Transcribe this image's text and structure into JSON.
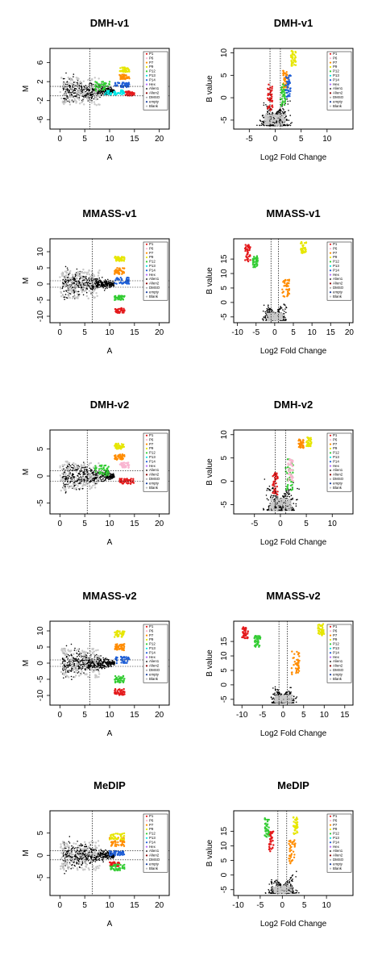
{
  "legend_entries": [
    {
      "label": "P1",
      "color": "#e41a1c"
    },
    {
      "label": "P6",
      "color": "#f9b4d0"
    },
    {
      "label": "P7",
      "color": "#ff8c00"
    },
    {
      "label": "P9",
      "color": "#e6e600"
    },
    {
      "label": "P12",
      "color": "#33cc33"
    },
    {
      "label": "P13",
      "color": "#00e5e5"
    },
    {
      "label": "P14",
      "color": "#1f5fd6"
    },
    {
      "label": "Hex",
      "color": "#b266ff"
    },
    {
      "label": "Alien1",
      "color": "#555555"
    },
    {
      "label": "Alien2",
      "color": "#8b0000"
    },
    {
      "label": "DMSO",
      "color": "#aaaaaa"
    },
    {
      "label": "empty",
      "color": "#1a3f9e"
    },
    {
      "label": "Blank",
      "color": "#bdbdbd"
    }
  ],
  "chart_data": [
    {
      "type": "scatter",
      "title": "DMH-v1",
      "xlabel": "A",
      "ylabel": "M",
      "xlim": [
        -2,
        22
      ],
      "ylim": [
        -8,
        9
      ],
      "xticks": [
        0,
        5,
        10,
        15,
        20
      ],
      "yticks": [
        -6,
        -2,
        2,
        6
      ],
      "vline": 6,
      "hlines": [
        -1,
        1
      ],
      "clusters": [
        {
          "label": "P1",
          "x": [
            13,
            15
          ],
          "y": [
            -1,
            0
          ]
        },
        {
          "label": "P7",
          "x": [
            12,
            14
          ],
          "y": [
            2.5,
            3.5
          ]
        },
        {
          "label": "P9",
          "x": [
            12,
            14
          ],
          "y": [
            4,
            5
          ]
        },
        {
          "label": "P12",
          "x": [
            7,
            10
          ],
          "y": [
            0,
            2
          ]
        },
        {
          "label": "P13",
          "x": [
            9,
            13
          ],
          "y": [
            -0.8,
            0.2
          ]
        },
        {
          "label": "P14",
          "x": [
            11,
            14
          ],
          "y": [
            0.8,
            1.8
          ]
        }
      ]
    },
    {
      "type": "scatter",
      "title": "DMH-v1",
      "xlabel": "Log2 Fold Change",
      "ylabel": "B value",
      "xlim": [
        -8,
        15
      ],
      "ylim": [
        -7,
        11
      ],
      "xticks": [
        -5,
        0,
        5,
        10
      ],
      "yticks": [
        -5,
        0,
        5,
        10
      ],
      "vlines": [
        -1,
        1
      ],
      "clusters": [
        {
          "label": "P1",
          "x": [
            -1.5,
            -0.5
          ],
          "y": [
            -3,
            3
          ]
        },
        {
          "label": "P7",
          "x": [
            1.5,
            2.5
          ],
          "y": [
            2,
            6
          ]
        },
        {
          "label": "P9",
          "x": [
            3,
            4
          ],
          "y": [
            7,
            10.5
          ]
        },
        {
          "label": "P12",
          "x": [
            1,
            2
          ],
          "y": [
            -2,
            3
          ]
        },
        {
          "label": "P14",
          "x": [
            2,
            3
          ],
          "y": [
            0,
            5
          ]
        }
      ]
    },
    {
      "type": "scatter",
      "title": "MMASS-v1",
      "xlabel": "A",
      "ylabel": "M",
      "xlim": [
        -2,
        22
      ],
      "ylim": [
        -12,
        14
      ],
      "xticks": [
        0,
        5,
        10,
        15,
        20
      ],
      "yticks": [
        -10,
        -5,
        0,
        5,
        10
      ],
      "vline": 6.5,
      "hlines": [
        -1,
        1
      ],
      "clusters": [
        {
          "label": "P1",
          "x": [
            11,
            13
          ],
          "y": [
            -9,
            -7.5
          ]
        },
        {
          "label": "P7",
          "x": [
            11,
            13
          ],
          "y": [
            3,
            5
          ]
        },
        {
          "label": "P9",
          "x": [
            11,
            13
          ],
          "y": [
            7,
            8.5
          ]
        },
        {
          "label": "P12",
          "x": [
            11,
            13
          ],
          "y": [
            -5,
            -3.5
          ]
        },
        {
          "label": "P14",
          "x": [
            11,
            14
          ],
          "y": [
            0,
            2
          ]
        }
      ]
    },
    {
      "type": "scatter",
      "title": "MMASS-v1",
      "xlabel": "Log2 Fold Change",
      "ylabel": "B value",
      "xlim": [
        -11,
        21
      ],
      "ylim": [
        -7,
        22
      ],
      "xticks": [
        -10,
        -5,
        0,
        5,
        10,
        15,
        20
      ],
      "yticks": [
        -5,
        0,
        5,
        10,
        15
      ],
      "vlines": [
        -1,
        1
      ],
      "clusters": [
        {
          "label": "P1",
          "x": [
            -8,
            -6.5
          ],
          "y": [
            14,
            20
          ]
        },
        {
          "label": "P9",
          "x": [
            7,
            8.5
          ],
          "y": [
            17,
            21
          ]
        },
        {
          "label": "P12",
          "x": [
            -6,
            -4.5
          ],
          "y": [
            12,
            16
          ]
        },
        {
          "label": "P7",
          "x": [
            2,
            4
          ],
          "y": [
            2,
            8
          ]
        }
      ]
    },
    {
      "type": "scatter",
      "title": "DMH-v2",
      "xlabel": "A",
      "ylabel": "M",
      "xlim": [
        -2,
        22
      ],
      "ylim": [
        -7,
        8.5
      ],
      "xticks": [
        0,
        5,
        10,
        15,
        20
      ],
      "yticks": [
        -5,
        0,
        5
      ],
      "vline": 5.5,
      "hlines": [
        -1,
        1
      ],
      "clusters": [
        {
          "label": "P1",
          "x": [
            12,
            15
          ],
          "y": [
            -1.5,
            -0.5
          ]
        },
        {
          "label": "P7",
          "x": [
            11,
            13
          ],
          "y": [
            3,
            4
          ]
        },
        {
          "label": "P9",
          "x": [
            11,
            13
          ],
          "y": [
            5,
            6
          ]
        },
        {
          "label": "P12",
          "x": [
            7,
            10
          ],
          "y": [
            0,
            2
          ]
        },
        {
          "label": "P6",
          "x": [
            12,
            14
          ],
          "y": [
            1.5,
            2.5
          ]
        }
      ]
    },
    {
      "type": "scatter",
      "title": "DMH-v2",
      "xlabel": "Log2 Fold Change",
      "ylabel": "B value",
      "xlim": [
        -9,
        14
      ],
      "ylim": [
        -7,
        11
      ],
      "xticks": [
        -5,
        0,
        5,
        10
      ],
      "yticks": [
        -5,
        0,
        5,
        10
      ],
      "vlines": [
        -1,
        1
      ],
      "clusters": [
        {
          "label": "P1",
          "x": [
            -1.5,
            -0.5
          ],
          "y": [
            -3,
            2
          ]
        },
        {
          "label": "P7",
          "x": [
            3.5,
            4.5
          ],
          "y": [
            7,
            9
          ]
        },
        {
          "label": "P9",
          "x": [
            5,
            6
          ],
          "y": [
            7.5,
            9.5
          ]
        },
        {
          "label": "P12",
          "x": [
            1,
            2.5
          ],
          "y": [
            -2,
            5
          ]
        },
        {
          "label": "P6",
          "x": [
            1.5,
            2.5
          ],
          "y": [
            0,
            5
          ]
        }
      ]
    },
    {
      "type": "scatter",
      "title": "MMASS-v2",
      "xlabel": "A",
      "ylabel": "M",
      "xlim": [
        -2,
        22
      ],
      "ylim": [
        -13,
        13
      ],
      "xticks": [
        0,
        5,
        10,
        15,
        20
      ],
      "yticks": [
        -10,
        -5,
        0,
        5,
        10
      ],
      "vline": 6,
      "hlines": [
        -1,
        1
      ],
      "clusters": [
        {
          "label": "P1",
          "x": [
            11,
            13
          ],
          "y": [
            -10,
            -8
          ]
        },
        {
          "label": "P7",
          "x": [
            11,
            13
          ],
          "y": [
            4,
            6
          ]
        },
        {
          "label": "P9",
          "x": [
            11,
            13
          ],
          "y": [
            8,
            10
          ]
        },
        {
          "label": "P12",
          "x": [
            11,
            13
          ],
          "y": [
            -6,
            -4
          ]
        },
        {
          "label": "P14",
          "x": [
            11,
            14
          ],
          "y": [
            0,
            2
          ]
        }
      ]
    },
    {
      "type": "scatter",
      "title": "MMASS-v2",
      "xlabel": "Log2 Fold Change",
      "ylabel": "B value",
      "xlim": [
        -12,
        17
      ],
      "ylim": [
        -7,
        22
      ],
      "xticks": [
        -10,
        -5,
        0,
        5,
        10,
        15
      ],
      "yticks": [
        -5,
        0,
        5,
        10,
        15
      ],
      "vlines": [
        -1,
        1
      ],
      "clusters": [
        {
          "label": "P1",
          "x": [
            -10,
            -8.5
          ],
          "y": [
            16,
            20
          ]
        },
        {
          "label": "P12",
          "x": [
            -7,
            -5.5
          ],
          "y": [
            13,
            17
          ]
        },
        {
          "label": "P9",
          "x": [
            8.5,
            10
          ],
          "y": [
            17,
            21
          ]
        },
        {
          "label": "P7",
          "x": [
            2,
            4
          ],
          "y": [
            3,
            12
          ]
        }
      ]
    },
    {
      "type": "scatter",
      "title": "MeDIP",
      "xlabel": "A",
      "ylabel": "M",
      "xlim": [
        -2,
        22
      ],
      "ylim": [
        -9,
        10
      ],
      "xticks": [
        0,
        5,
        10,
        15,
        20
      ],
      "yticks": [
        -5,
        0,
        5
      ],
      "vline": 6.5,
      "hlines": [
        -1,
        1
      ],
      "clusters": [
        {
          "label": "P1",
          "x": [
            10,
            12
          ],
          "y": [
            -2.5,
            -1.5
          ]
        },
        {
          "label": "P7",
          "x": [
            10,
            13
          ],
          "y": [
            2,
            4
          ]
        },
        {
          "label": "P9",
          "x": [
            10,
            13
          ],
          "y": [
            3.5,
            5
          ]
        },
        {
          "label": "P12",
          "x": [
            10,
            13
          ],
          "y": [
            -3.5,
            -2
          ]
        },
        {
          "label": "P14",
          "x": [
            10,
            13
          ],
          "y": [
            0,
            1
          ]
        }
      ]
    },
    {
      "type": "scatter",
      "title": "MeDIP",
      "xlabel": "Log2 Fold Change",
      "ylabel": "B value",
      "xlim": [
        -11,
        16
      ],
      "ylim": [
        -7,
        22
      ],
      "xticks": [
        -10,
        -5,
        0,
        5,
        10
      ],
      "yticks": [
        -5,
        0,
        5,
        10,
        15
      ],
      "vlines": [
        -1,
        1
      ],
      "clusters": [
        {
          "label": "P1",
          "x": [
            -3,
            -2
          ],
          "y": [
            8,
            15
          ]
        },
        {
          "label": "P12",
          "x": [
            -4,
            -3
          ],
          "y": [
            13,
            20
          ]
        },
        {
          "label": "P9",
          "x": [
            2.5,
            3.5
          ],
          "y": [
            14,
            20
          ]
        },
        {
          "label": "P7",
          "x": [
            1.5,
            3
          ],
          "y": [
            4,
            12
          ]
        }
      ]
    }
  ]
}
